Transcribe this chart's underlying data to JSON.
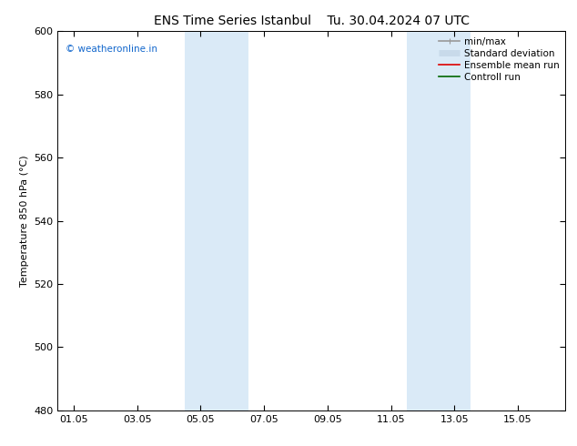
{
  "title": "ENS Time Series Istanbul",
  "title2": "Tu. 30.04.2024 07 UTC",
  "ylabel": "Temperature 850 hPa (°C)",
  "ylim": [
    480,
    600
  ],
  "yticks": [
    480,
    500,
    520,
    540,
    560,
    580,
    600
  ],
  "xtick_labels": [
    "01.05",
    "03.05",
    "05.05",
    "07.05",
    "09.05",
    "11.05",
    "13.05",
    "15.05"
  ],
  "xtick_positions": [
    0,
    2,
    4,
    6,
    8,
    10,
    12,
    14
  ],
  "xlim": [
    -0.5,
    15.5
  ],
  "bg_color": "#ffffff",
  "plot_bg_color": "#ffffff",
  "shaded_bands": [
    {
      "x_start": 3.5,
      "x_end": 5.5,
      "color": "#daeaf7"
    },
    {
      "x_start": 10.5,
      "x_end": 12.5,
      "color": "#daeaf7"
    }
  ],
  "watermark": "© weatheronline.in",
  "watermark_color": "#1166cc",
  "legend_items": [
    {
      "label": "min/max",
      "color": "#999999",
      "lw": 1.2,
      "type": "line_with_caps"
    },
    {
      "label": "Standard deviation",
      "color": "#c8daea",
      "lw": 5,
      "type": "band"
    },
    {
      "label": "Ensemble mean run",
      "color": "#dd0000",
      "lw": 1.2,
      "type": "line"
    },
    {
      "label": "Controll run",
      "color": "#006600",
      "lw": 1.2,
      "type": "line"
    }
  ],
  "font_family": "DejaVu Sans",
  "title_fontsize": 10,
  "tick_fontsize": 8,
  "ylabel_fontsize": 8,
  "legend_fontsize": 7.5,
  "watermark_fontsize": 7.5
}
